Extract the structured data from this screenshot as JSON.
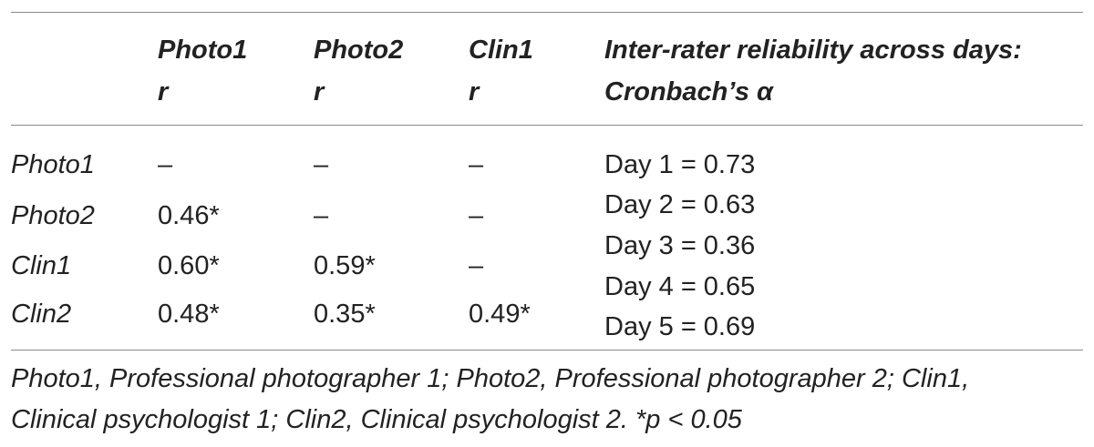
{
  "table": {
    "headers": {
      "col1": {
        "line1": "Photo1",
        "line2": "r"
      },
      "col2": {
        "line1": "Photo2",
        "line2": "r"
      },
      "col3": {
        "line1": "Clin1",
        "line2": "r"
      },
      "col4": {
        "line1": "Inter-rater reliability across days:",
        "line2": "Cronbach’s α"
      }
    },
    "rows": [
      {
        "label": "Photo1",
        "c1": "–",
        "c2": "–",
        "c3": "–"
      },
      {
        "label": "Photo2",
        "c1": "0.46*",
        "c2": "–",
        "c3": "–"
      },
      {
        "label": "Clin1",
        "c1": "0.60*",
        "c2": "0.59*",
        "c3": "–"
      },
      {
        "label": "Clin2",
        "c1": "0.48*",
        "c2": "0.35*",
        "c3": "0.49*"
      }
    ],
    "reliability": [
      "Day 1 = 0.73",
      "Day 2 = 0.63",
      "Day 3 = 0.36",
      "Day 4 = 0.65",
      "Day 5 = 0.69"
    ]
  },
  "footnote": {
    "line1": "Photo1, Professional photographer 1; Photo2, Professional photographer 2; Clin1,",
    "line2": "Clinical psychologist 1; Clin2, Clinical psychologist 2. *p < 0.05"
  }
}
